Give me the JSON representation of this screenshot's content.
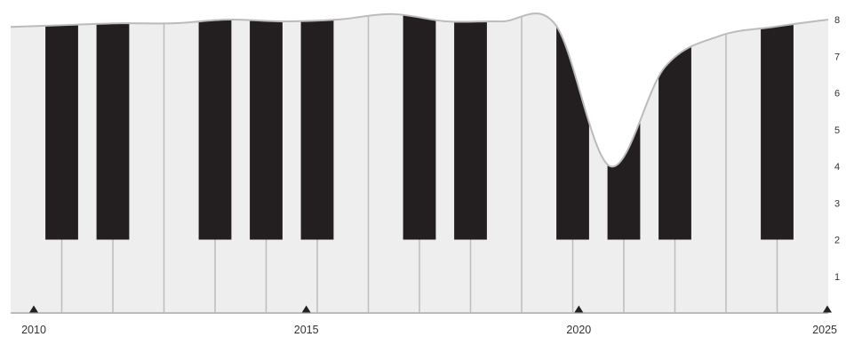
{
  "chart_data": {
    "type": "area",
    "title": "",
    "xlabel": "",
    "ylabel": "",
    "x": [
      2010,
      2011,
      2012,
      2013,
      2014,
      2015,
      2016,
      2017,
      2018,
      2019,
      2020,
      2021,
      2022,
      2023,
      2024,
      2025
    ],
    "values": [
      7.8,
      7.85,
      7.9,
      7.9,
      8.0,
      7.95,
      8.0,
      8.15,
      7.95,
      7.95,
      7.85,
      4.0,
      6.7,
      7.55,
      7.8,
      8.0
    ],
    "xlim": [
      2010,
      2025
    ],
    "ylim": [
      0,
      8
    ],
    "x_ticks": [
      "2010",
      "2015",
      "2020",
      "2025"
    ],
    "y_ticks": [
      "1",
      "2",
      "3",
      "4",
      "5",
      "6",
      "7",
      "8"
    ],
    "key_threshold": 2,
    "grid": false,
    "legend": "none",
    "colors": {
      "white_key": "#eeeeee",
      "black_key": "#231f20",
      "outline": "#bbbbbb",
      "axis": "#222222"
    }
  }
}
